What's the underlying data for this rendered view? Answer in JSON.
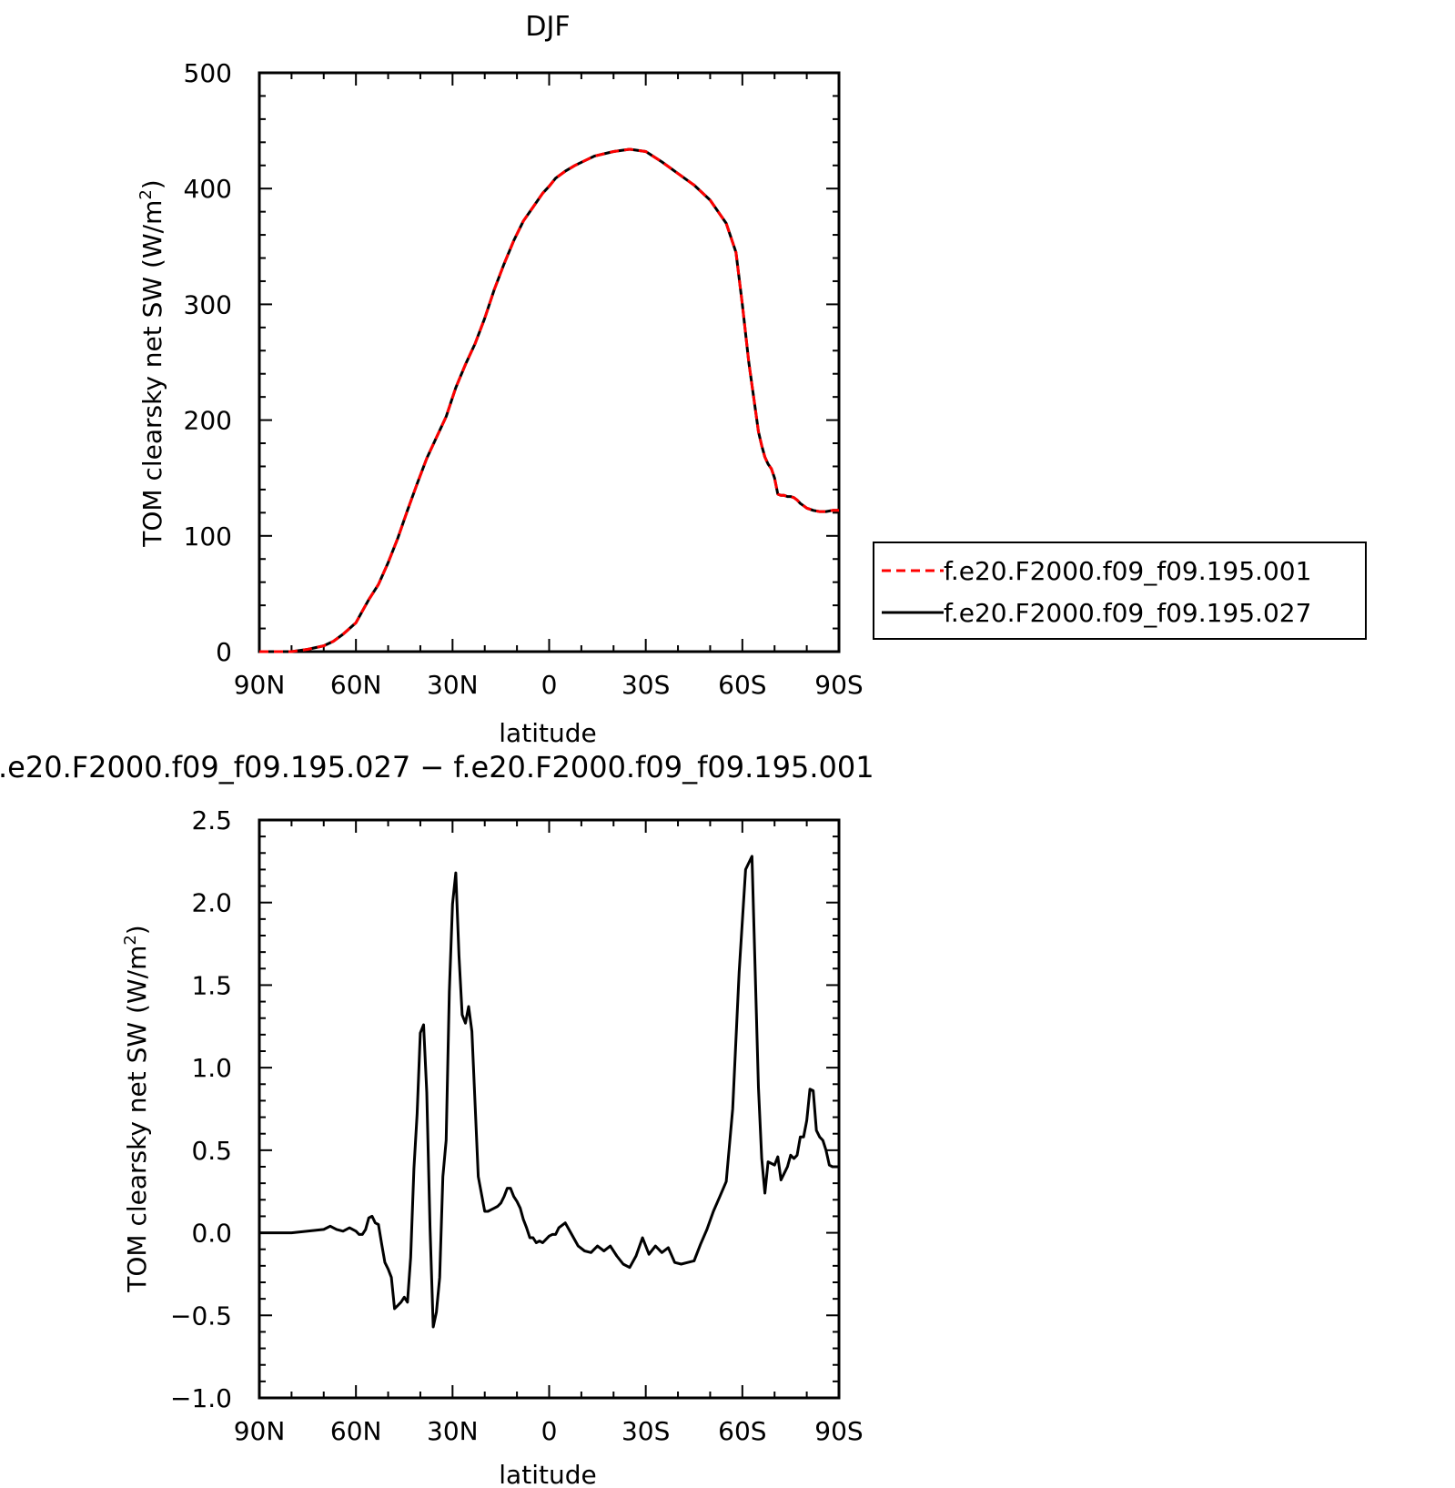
{
  "chart_data": [
    {
      "type": "line",
      "title": "DJF",
      "xlabel": "latitude",
      "ylabel": "TOM clearsky net SW (W/m²)",
      "ylabel_parts": [
        "TOM clearsky net SW (W/m",
        "2",
        ")"
      ],
      "xlim": [
        90,
        -90
      ],
      "ylim": [
        0,
        500
      ],
      "x_ticks": [
        90,
        60,
        30,
        0,
        -30,
        -60,
        -90
      ],
      "x_tick_labels": [
        "90N",
        "60N",
        "30N",
        "0",
        "30S",
        "60S",
        "90S"
      ],
      "y_ticks": [
        0,
        100,
        200,
        300,
        400,
        500
      ],
      "y_tick_labels": [
        "0",
        "100",
        "200",
        "300",
        "400",
        "500"
      ],
      "grid": false,
      "legend_position": "right",
      "series": [
        {
          "name": "f.e20.F2000.f09_f09.195.001",
          "color": "#ff0000",
          "dash": "dashed",
          "x": [
            90,
            85,
            80,
            75,
            70,
            67,
            64,
            60,
            58,
            56,
            53,
            50,
            47,
            44,
            41,
            38,
            35,
            32,
            29,
            26,
            23,
            20,
            17,
            14,
            11,
            8,
            5,
            2,
            0,
            -2,
            -5,
            -8,
            -11,
            -14,
            -17,
            -20,
            -25,
            -30,
            -35,
            -40,
            -45,
            -50,
            -55,
            -58,
            -60,
            -62,
            -64,
            -65,
            -66,
            -67,
            -68,
            -69,
            -70,
            -71,
            -72,
            -73,
            -74,
            -75,
            -76,
            -77,
            -78,
            -79,
            -80,
            -82,
            -84,
            -86,
            -88,
            -90
          ],
          "y": [
            0,
            0,
            0,
            2,
            5,
            9,
            15,
            25,
            35,
            45,
            58,
            77,
            98,
            122,
            145,
            167,
            185,
            203,
            228,
            248,
            266,
            288,
            313,
            335,
            355,
            372,
            384,
            396,
            402,
            409,
            415,
            420,
            424,
            428,
            430,
            432,
            434,
            432,
            423,
            413,
            403,
            390,
            370,
            345,
            300,
            250,
            210,
            190,
            178,
            168,
            162,
            158,
            150,
            136,
            135,
            135,
            134,
            134,
            133,
            131,
            128,
            126,
            124,
            122,
            121,
            121,
            122,
            122
          ]
        },
        {
          "name": "f.e20.F2000.f09_f09.195.027",
          "color": "#000000",
          "dash": "solid",
          "x": [
            90,
            85,
            80,
            75,
            70,
            67,
            64,
            60,
            58,
            56,
            53,
            50,
            47,
            44,
            41,
            38,
            35,
            32,
            29,
            26,
            23,
            20,
            17,
            14,
            11,
            8,
            5,
            2,
            0,
            -2,
            -5,
            -8,
            -11,
            -14,
            -17,
            -20,
            -25,
            -30,
            -35,
            -40,
            -45,
            -50,
            -55,
            -58,
            -60,
            -62,
            -64,
            -65,
            -66,
            -67,
            -68,
            -69,
            -70,
            -71,
            -72,
            -73,
            -74,
            -75,
            -76,
            -77,
            -78,
            -79,
            -80,
            -82,
            -84,
            -86,
            -88,
            -90
          ],
          "y": [
            0,
            0,
            0,
            2,
            5,
            9,
            15,
            25,
            35,
            45,
            58,
            77,
            98,
            122,
            145,
            167,
            185,
            203,
            228,
            248,
            266,
            288,
            313,
            335,
            355,
            372,
            384,
            396,
            402,
            409,
            415,
            420,
            424,
            428,
            430,
            432,
            434,
            432,
            423,
            413,
            403,
            390,
            370,
            345,
            300,
            250,
            210,
            190,
            178,
            168,
            162,
            158,
            150,
            136,
            135,
            135,
            134,
            134,
            133,
            131,
            128,
            126,
            124,
            122,
            121,
            121,
            122,
            122
          ]
        }
      ]
    },
    {
      "type": "line",
      "title": ".e20.F2000.f09_f09.195.027 − f.e20.F2000.f09_f09.195.001",
      "xlabel": "latitude",
      "ylabel": "TOM clearsky net SW (W/m²)",
      "ylabel_parts": [
        "TOM clearsky net SW (W/m",
        "2",
        ")"
      ],
      "xlim": [
        90,
        -90
      ],
      "ylim": [
        -1.0,
        2.5
      ],
      "x_ticks": [
        90,
        60,
        30,
        0,
        -30,
        -60,
        -90
      ],
      "x_tick_labels": [
        "90N",
        "60N",
        "30N",
        "0",
        "30S",
        "60S",
        "90S"
      ],
      "y_ticks": [
        -1.0,
        -0.5,
        0.0,
        0.5,
        1.0,
        1.5,
        2.0,
        2.5
      ],
      "y_tick_labels": [
        "−1.0",
        "−0.5",
        "0.0",
        "0.5",
        "1.0",
        "1.5",
        "2.0",
        "2.5"
      ],
      "grid": false,
      "series": [
        {
          "name": "",
          "color": "#000000",
          "dash": "solid",
          "x": [
            90,
            80,
            75,
            70,
            68,
            66,
            64,
            62,
            60,
            59,
            58,
            57,
            56,
            55,
            54,
            53,
            52,
            51,
            50,
            49,
            48,
            47,
            46,
            45,
            44,
            43,
            42,
            41,
            40,
            39,
            38,
            37,
            36,
            35,
            34,
            33,
            32,
            31,
            30,
            29,
            28,
            27,
            26,
            25,
            24,
            22,
            20,
            19,
            18,
            17,
            16,
            15,
            14,
            13,
            12,
            11,
            10,
            9,
            8,
            7,
            6,
            5,
            4,
            3,
            2,
            1,
            0,
            -1,
            -2,
            -3,
            -5,
            -7,
            -9,
            -11,
            -13,
            -15,
            -17,
            -19,
            -21,
            -23,
            -25,
            -27,
            -29,
            -31,
            -33,
            -35,
            -37,
            -39,
            -41,
            -43,
            -45,
            -47,
            -49,
            -51,
            -53,
            -55,
            -57,
            -59,
            -61,
            -63,
            -65,
            -66,
            -67,
            -68,
            -69,
            -70,
            -71,
            -72,
            -73,
            -74,
            -75,
            -76,
            -77,
            -78,
            -79,
            -80,
            -81,
            -82,
            -83,
            -84,
            -85,
            -86,
            -87,
            -88,
            -89,
            -90
          ],
          "y": [
            0,
            0,
            0.01,
            0.02,
            0.04,
            0.02,
            0.01,
            0.03,
            0.01,
            -0.01,
            -0.01,
            0.02,
            0.09,
            0.1,
            0.06,
            0.05,
            -0.07,
            -0.18,
            -0.22,
            -0.27,
            -0.46,
            -0.44,
            -0.42,
            -0.39,
            -0.42,
            -0.15,
            0.39,
            0.72,
            1.21,
            1.26,
            0.85,
            0.03,
            -0.57,
            -0.48,
            -0.27,
            0.34,
            0.56,
            1.46,
            1.99,
            2.18,
            1.68,
            1.32,
            1.27,
            1.37,
            1.22,
            0.34,
            0.13,
            0.13,
            0.14,
            0.15,
            0.16,
            0.18,
            0.22,
            0.27,
            0.27,
            0.22,
            0.19,
            0.15,
            0.08,
            0.03,
            -0.03,
            -0.03,
            -0.06,
            -0.05,
            -0.06,
            -0.04,
            -0.02,
            -0.01,
            -0.01,
            0.03,
            0.06,
            -0.01,
            -0.08,
            -0.11,
            -0.12,
            -0.08,
            -0.11,
            -0.08,
            -0.14,
            -0.19,
            -0.21,
            -0.14,
            -0.03,
            -0.13,
            -0.08,
            -0.12,
            -0.09,
            -0.18,
            -0.19,
            -0.18,
            -0.17,
            -0.07,
            0.02,
            0.13,
            0.22,
            0.31,
            0.75,
            1.58,
            2.2,
            2.28,
            0.88,
            0.45,
            0.24,
            0.43,
            0.42,
            0.41,
            0.46,
            0.32,
            0.36,
            0.4,
            0.47,
            0.45,
            0.47,
            0.58,
            0.58,
            0.68,
            0.87,
            0.86,
            0.62,
            0.58,
            0.56,
            0.5,
            0.41,
            0.4,
            0.4,
            0.4
          ]
        }
      ]
    }
  ]
}
